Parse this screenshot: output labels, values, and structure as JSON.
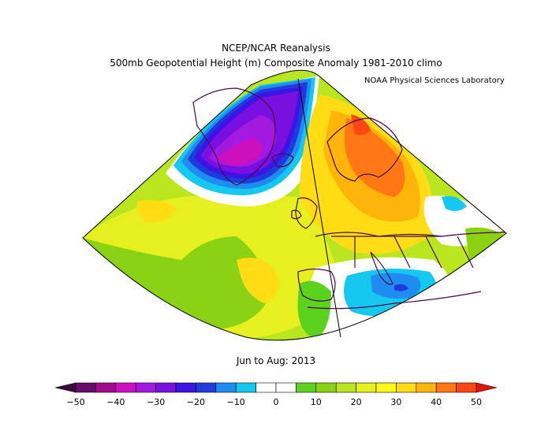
{
  "header": {
    "title_line1": "NCEP/NCAR Reanalysis",
    "title_line2": "500mb Geopotential Height (m) Composite Anomaly 1981-2010 climo",
    "credit": "NOAA Physical Sciences Laboratory"
  },
  "footer": {
    "period": "Jun to Aug: 2013"
  },
  "colorbar": {
    "units": "m",
    "ticks": [
      -50,
      -40,
      -30,
      -20,
      -10,
      0,
      10,
      20,
      30,
      40,
      50
    ],
    "bins": [
      {
        "lo": -50,
        "hi": -45,
        "color": "#6a0a6a"
      },
      {
        "lo": -45,
        "hi": -40,
        "color": "#a00a8c"
      },
      {
        "lo": -40,
        "hi": -35,
        "color": "#cd10be"
      },
      {
        "lo": -35,
        "hi": -30,
        "color": "#a21ae0"
      },
      {
        "lo": -30,
        "hi": -25,
        "color": "#7a10e0"
      },
      {
        "lo": -25,
        "hi": -20,
        "color": "#3c14e6"
      },
      {
        "lo": -20,
        "hi": -15,
        "color": "#1e3cdc"
      },
      {
        "lo": -15,
        "hi": -10,
        "color": "#1e8cf0"
      },
      {
        "lo": -10,
        "hi": -5,
        "color": "#14c8f0"
      },
      {
        "lo": -5,
        "hi": 0,
        "color": "#ffffff"
      },
      {
        "lo": 0,
        "hi": 5,
        "color": "#ffffff"
      },
      {
        "lo": 5,
        "hi": 10,
        "color": "#5ad21e"
      },
      {
        "lo": 10,
        "hi": 15,
        "color": "#8cd214"
      },
      {
        "lo": 15,
        "hi": 20,
        "color": "#b9e61e"
      },
      {
        "lo": 20,
        "hi": 25,
        "color": "#e6f01e"
      },
      {
        "lo": 25,
        "hi": 30,
        "color": "#fffa14"
      },
      {
        "lo": 30,
        "hi": 35,
        "color": "#ffdc14"
      },
      {
        "lo": 35,
        "hi": 40,
        "color": "#ffb40a"
      },
      {
        "lo": 40,
        "hi": 45,
        "color": "#ff7814"
      },
      {
        "lo": 45,
        "hi": 50,
        "color": "#ff4614"
      }
    ],
    "under_color": "#3c0a3c",
    "over_color": "#e6140a"
  },
  "map": {
    "region": "North Atlantic and Europe",
    "projection": "polar sector",
    "anomaly_centers": [
      {
        "name": "greenland-low",
        "value": -40
      },
      {
        "name": "scandinavia-high",
        "value": 45
      },
      {
        "name": "mediterranean-low",
        "value": -15
      },
      {
        "name": "atlantic-subtropical-high",
        "value": 30
      }
    ]
  }
}
